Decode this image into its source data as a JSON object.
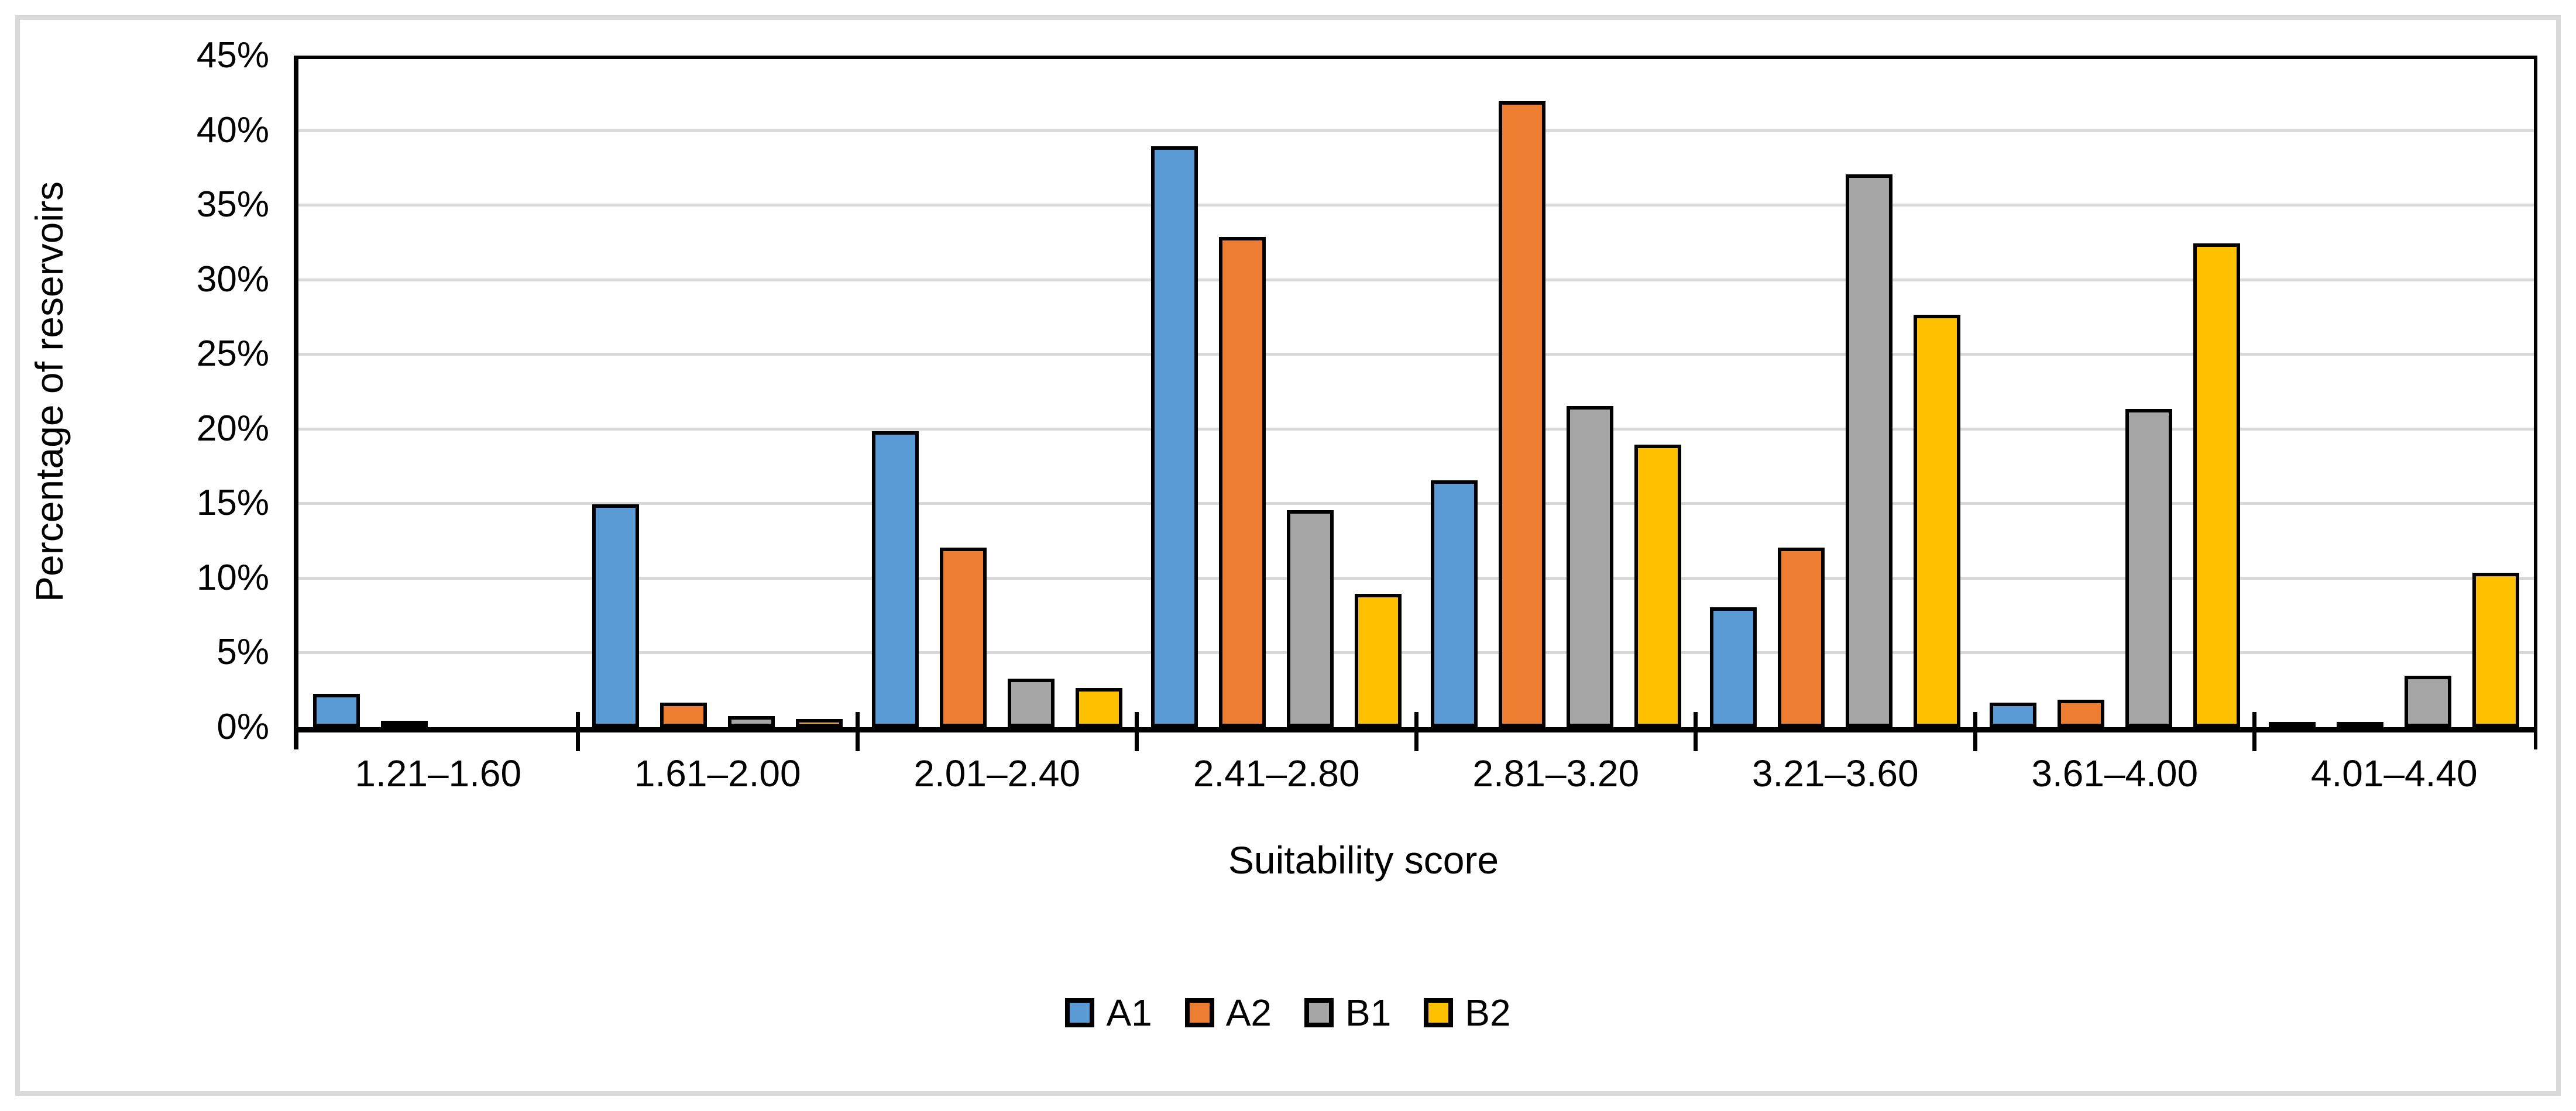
{
  "figure": {
    "background": "#FFFFFF",
    "frame_color": "#D9D9D9"
  },
  "chart_data": {
    "type": "bar",
    "title": "",
    "xlabel": "Suitability score",
    "ylabel": "Percentage of reservoirs",
    "categories": [
      "1.21–1.60",
      "1.61–2.00",
      "2.01–2.40",
      "2.41–2.80",
      "2.81–3.20",
      "3.21–3.60",
      "3.61–4.00",
      "4.01–4.40"
    ],
    "series": [
      {
        "name": "A1",
        "color": "#5B9BD5",
        "values": [
          2.0,
          14.7,
          19.6,
          38.7,
          16.3,
          7.8,
          1.4,
          0.1
        ]
      },
      {
        "name": "A2",
        "color": "#ED7D31",
        "values": [
          0.2,
          1.4,
          11.8,
          32.6,
          41.7,
          11.8,
          1.6,
          0.1
        ]
      },
      {
        "name": "B1",
        "color": "#A5A5A5",
        "values": [
          0.0,
          0.5,
          3.0,
          14.3,
          21.3,
          36.8,
          21.1,
          3.2
        ]
      },
      {
        "name": "B2",
        "color": "#FFC000",
        "values": [
          0.0,
          0.3,
          2.4,
          8.7,
          18.7,
          27.4,
          32.2,
          10.1
        ]
      }
    ],
    "y_axis": {
      "min": 0,
      "max": 45,
      "step": 5,
      "tick_labels": [
        "0%",
        "5%",
        "10%",
        "15%",
        "20%",
        "25%",
        "30%",
        "35%",
        "40%",
        "45%"
      ]
    },
    "grid": true,
    "gridline_color": "#D9D9D9",
    "axis_color": "#000000",
    "bar_outline_color": "#000000",
    "legend_position": "bottom"
  }
}
